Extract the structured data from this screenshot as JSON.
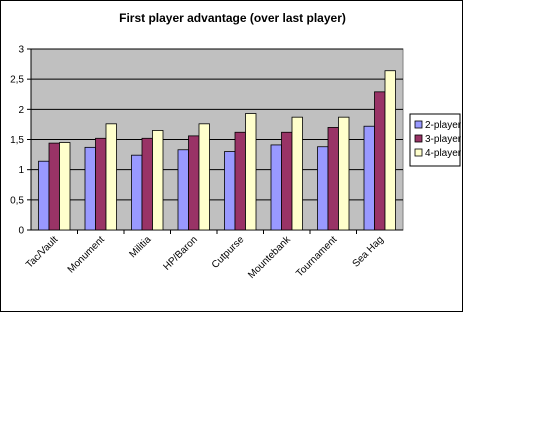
{
  "chart_data": {
    "type": "bar",
    "title": "First player advantage (over last player)",
    "xlabel": "",
    "ylabel": "",
    "categories": [
      "Tac/Vault",
      "Monument",
      "Militia",
      "HP/Baron",
      "Cutpurse",
      "Mountebank",
      "Tournament",
      "Sea Hag"
    ],
    "series": [
      {
        "name": "2-player",
        "color": "#9999ff",
        "values": [
          1.14,
          1.37,
          1.24,
          1.33,
          1.3,
          1.41,
          1.38,
          1.72
        ]
      },
      {
        "name": "3-player",
        "color": "#993366",
        "values": [
          1.44,
          1.52,
          1.52,
          1.56,
          1.62,
          1.62,
          1.7,
          2.29
        ]
      },
      {
        "name": "4-player",
        "color": "#ffffcc",
        "values": [
          1.45,
          1.76,
          1.65,
          1.76,
          1.93,
          1.87,
          1.87,
          2.64
        ]
      }
    ],
    "ylim": [
      0,
      3
    ],
    "yticks": [
      "0",
      "0,5",
      "1",
      "1,5",
      "2",
      "2,5",
      "3"
    ],
    "grid": true,
    "legend": "right",
    "plot_background": "#c0c0c0"
  }
}
